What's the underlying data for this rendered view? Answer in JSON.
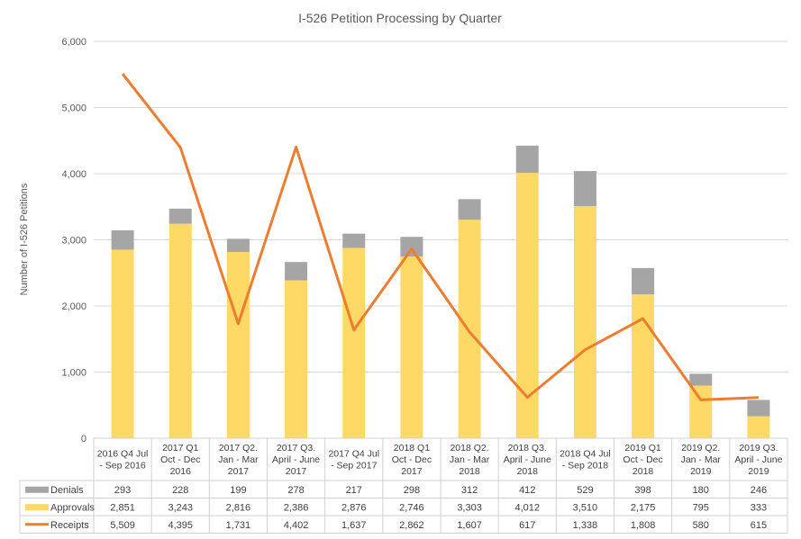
{
  "chart_data": {
    "type": "bar",
    "title": "I-526 Petition Processing by Quarter",
    "ylabel": "Number of I-526 Petitions",
    "xlabel": "",
    "ylim": [
      0,
      6000
    ],
    "yticks": [
      "0",
      "1,000",
      "2,000",
      "3,000",
      "4,000",
      "5,000",
      "6,000"
    ],
    "ytick_values": [
      0,
      1000,
      2000,
      3000,
      4000,
      5000,
      6000
    ],
    "grid": true,
    "legend": "data-table",
    "categories": [
      [
        "2016 Q4 Jul",
        "- Sep 2016"
      ],
      [
        "2017 Q1",
        "Oct - Dec",
        "2016"
      ],
      [
        "2017 Q2.",
        "Jan - Mar",
        "2017"
      ],
      [
        "2017 Q3.",
        "April - June",
        "2017"
      ],
      [
        "2017 Q4 Jul",
        "- Sep 2017"
      ],
      [
        "2018 Q1",
        "Oct - Dec",
        "2017"
      ],
      [
        "2018 Q2.",
        "Jan - Mar",
        "2018"
      ],
      [
        "2018 Q3.",
        "April - June",
        "2018"
      ],
      [
        "2018 Q4 Jul",
        "- Sep 2018"
      ],
      [
        "2019  Q1",
        "Oct - Dec",
        "2018"
      ],
      [
        "2019 Q2.",
        "Jan - Mar",
        "2019"
      ],
      [
        "2019 Q3.",
        "April - June",
        "2019"
      ]
    ],
    "series": [
      {
        "name": "Denials",
        "kind": "stacked-bar",
        "color": "#a5a5a5",
        "values": [
          293,
          228,
          199,
          278,
          217,
          298,
          312,
          412,
          529,
          398,
          180,
          246
        ],
        "labels": [
          "293",
          "228",
          "199",
          "278",
          "217",
          "298",
          "312",
          "412",
          "529",
          "398",
          "180",
          "246"
        ]
      },
      {
        "name": "Approvals",
        "kind": "stacked-bar",
        "color": "#ffd966",
        "values": [
          2851,
          3243,
          2816,
          2386,
          2876,
          2746,
          3303,
          4012,
          3510,
          2175,
          795,
          333
        ],
        "labels": [
          "2,851",
          "3,243",
          "2,816",
          "2,386",
          "2,876",
          "2,746",
          "3,303",
          "4,012",
          "3,510",
          "2,175",
          "795",
          "333"
        ]
      },
      {
        "name": "Receipts",
        "kind": "line",
        "color": "#ed7d31",
        "values": [
          5509,
          4395,
          1731,
          4402,
          1637,
          2862,
          1607,
          617,
          1338,
          1808,
          580,
          615
        ],
        "labels": [
          "5,509",
          "4,395",
          "1,731",
          "4,402",
          "1,637",
          "2,862",
          "1,607",
          "617",
          "1,338",
          "1,808",
          "580",
          "615"
        ]
      }
    ]
  }
}
